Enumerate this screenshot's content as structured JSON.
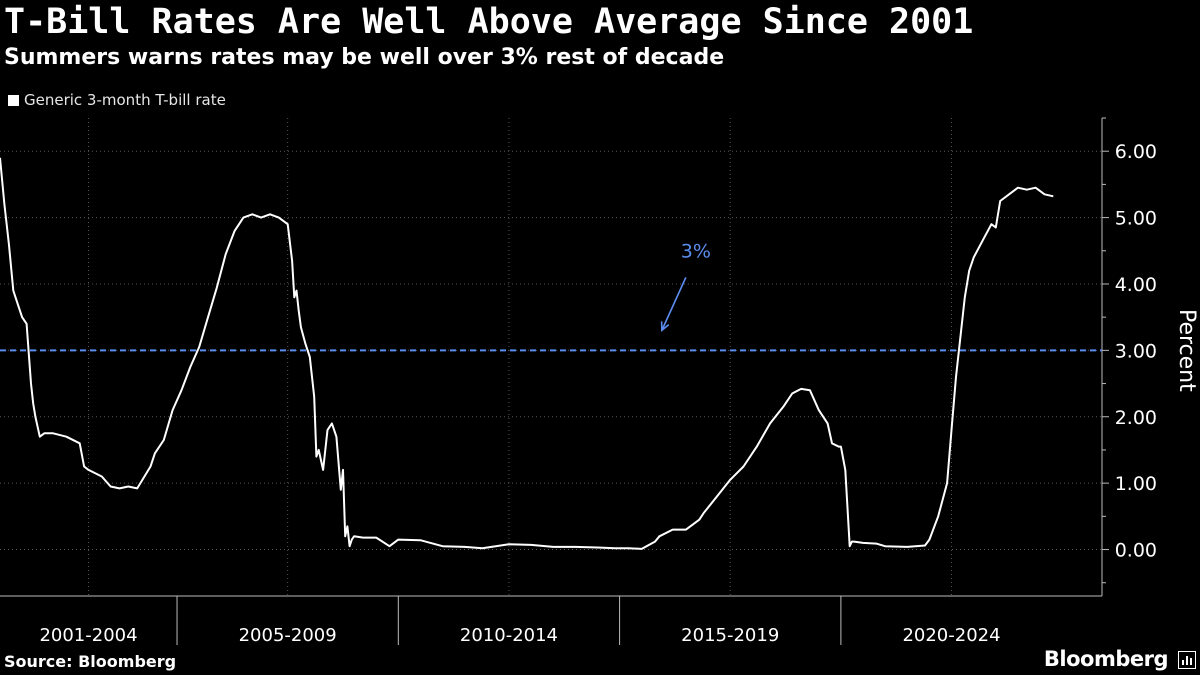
{
  "header": {
    "title": "T-Bill Rates Are Well Above Average Since 2001",
    "subtitle": "Summers warns rates may be well over 3% rest of decade"
  },
  "footer": {
    "source": "Source: Bloomberg",
    "brand": "Bloomberg"
  },
  "chart_data": {
    "type": "line",
    "title": "T-Bill Rates Are Well Above Average Since 2001",
    "ylabel": "Percent",
    "xlabel": "",
    "ylim": [
      -0.7,
      6.5
    ],
    "xlim": [
      2001.0,
      2025.9
    ],
    "y_ticks": [
      "0.00",
      "1.00",
      "2.00",
      "3.00",
      "4.00",
      "5.00",
      "6.00"
    ],
    "y_tick_values": [
      0,
      1,
      2,
      3,
      4,
      5,
      6
    ],
    "period_labels": [
      "2001-2004",
      "2005-2009",
      "2010-2014",
      "2015-2019",
      "2020-2024"
    ],
    "period_boundaries": [
      2005.0,
      2010.0,
      2015.0,
      2020.0
    ],
    "gridlines": true,
    "legend_position": "top-left",
    "reference_line": {
      "value": 3,
      "color": "#5b8def",
      "style": "dashed"
    },
    "annotation": {
      "text": "3%",
      "color": "#5b8def",
      "x": 2016.0,
      "y": 3.0
    },
    "series": [
      {
        "name": "Generic 3-month T-bill rate",
        "color": "#ffffff",
        "x": [
          2001.0,
          2001.1,
          2001.2,
          2001.3,
          2001.4,
          2001.5,
          2001.6,
          2001.7,
          2001.75,
          2001.8,
          2001.9,
          2002.0,
          2002.2,
          2002.5,
          2002.8,
          2002.9,
          2003.0,
          2003.3,
          2003.5,
          2003.7,
          2003.9,
          2004.1,
          2004.4,
          2004.5,
          2004.7,
          2004.9,
          2005.1,
          2005.3,
          2005.5,
          2005.7,
          2005.9,
          2006.1,
          2006.3,
          2006.5,
          2006.7,
          2006.9,
          2007.1,
          2007.3,
          2007.5,
          2007.6,
          2007.65,
          2007.7,
          2007.75,
          2007.8,
          2007.9,
          2008.0,
          2008.1,
          2008.15,
          2008.2,
          2008.3,
          2008.4,
          2008.5,
          2008.6,
          2008.7,
          2008.75,
          2008.8,
          2008.85,
          2008.9,
          2008.95,
          2009.0,
          2009.2,
          2009.5,
          2009.8,
          2010.0,
          2010.5,
          2011.0,
          2011.5,
          2011.9,
          2012.5,
          2013.0,
          2013.5,
          2014.0,
          2014.5,
          2014.9,
          2015.2,
          2015.5,
          2015.8,
          2015.9,
          2016.2,
          2016.5,
          2016.8,
          2016.9,
          2017.2,
          2017.5,
          2017.8,
          2018.1,
          2018.4,
          2018.7,
          2018.9,
          2019.1,
          2019.3,
          2019.5,
          2019.7,
          2019.8,
          2019.95,
          2020.0,
          2020.1,
          2020.2,
          2020.25,
          2020.3,
          2020.5,
          2020.8,
          2021.0,
          2021.5,
          2021.9,
          2022.0,
          2022.2,
          2022.4,
          2022.5,
          2022.6,
          2022.7,
          2022.8,
          2022.9,
          2023.0,
          2023.2,
          2023.4,
          2023.5,
          2023.6,
          2023.8,
          2024.0,
          2024.2,
          2024.4,
          2024.6,
          2024.8
        ],
        "values": [
          5.9,
          5.2,
          4.6,
          3.9,
          3.7,
          3.5,
          3.4,
          2.5,
          2.2,
          2.0,
          1.7,
          1.75,
          1.75,
          1.7,
          1.6,
          1.25,
          1.2,
          1.1,
          0.95,
          0.92,
          0.95,
          0.92,
          1.25,
          1.45,
          1.65,
          2.1,
          2.4,
          2.75,
          3.05,
          3.5,
          3.95,
          4.45,
          4.8,
          5.0,
          5.05,
          5.0,
          5.05,
          5.0,
          4.9,
          4.35,
          3.8,
          3.9,
          3.6,
          3.35,
          3.1,
          2.9,
          2.3,
          1.4,
          1.5,
          1.2,
          1.8,
          1.9,
          1.7,
          0.9,
          1.2,
          0.2,
          0.35,
          0.05,
          0.15,
          0.2,
          0.18,
          0.18,
          0.05,
          0.15,
          0.14,
          0.05,
          0.04,
          0.02,
          0.08,
          0.07,
          0.04,
          0.04,
          0.03,
          0.02,
          0.02,
          0.01,
          0.12,
          0.2,
          0.3,
          0.3,
          0.45,
          0.55,
          0.8,
          1.05,
          1.25,
          1.55,
          1.9,
          2.15,
          2.35,
          2.42,
          2.4,
          2.1,
          1.9,
          1.6,
          1.55,
          1.55,
          1.2,
          0.05,
          0.12,
          0.12,
          0.1,
          0.09,
          0.05,
          0.04,
          0.06,
          0.15,
          0.5,
          1.0,
          1.8,
          2.6,
          3.2,
          3.8,
          4.2,
          4.4,
          4.65,
          4.9,
          4.85,
          5.25,
          5.35,
          5.45,
          5.42,
          5.45,
          5.35,
          5.32
        ]
      }
    ]
  }
}
